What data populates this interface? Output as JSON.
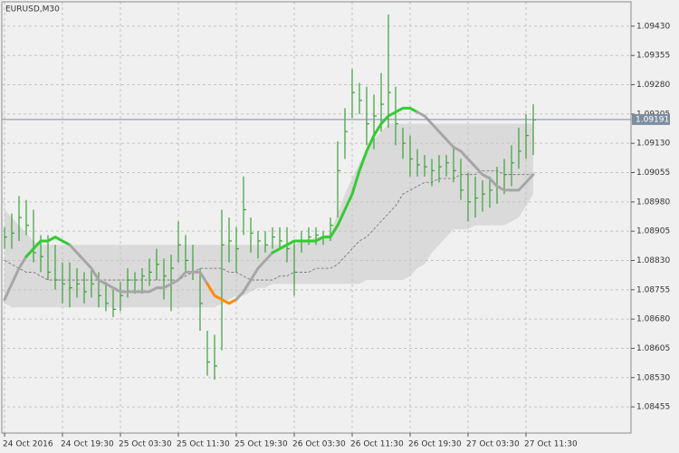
{
  "chart_data": {
    "type": "ohlc",
    "title": "EURUSD,M30",
    "categories": [
      "24 Oct 2016",
      null,
      null,
      null,
      null,
      null,
      null,
      null,
      "24 Oct 19:30",
      null,
      null,
      null,
      null,
      null,
      null,
      null,
      "25 Oct 03:30",
      null,
      null,
      null,
      null,
      null,
      null,
      null,
      "25 Oct 11:30",
      null,
      null,
      null,
      null,
      null,
      null,
      null,
      "25 Oct 19:30",
      null,
      null,
      null,
      null,
      null,
      null,
      null,
      "26 Oct 03:30",
      null,
      null,
      null,
      null,
      null,
      null,
      null,
      "26 Oct 11:30",
      null,
      null,
      null,
      null,
      null,
      null,
      null,
      "26 Oct 19:30",
      null,
      null,
      null,
      null,
      null,
      null,
      null,
      "27 Oct 03:30",
      null,
      null,
      null,
      null,
      null,
      null,
      null,
      "27 Oct 11:30",
      null
    ],
    "high": [
      1.08915,
      1.0895,
      1.08995,
      1.08985,
      1.0896,
      1.08895,
      1.08895,
      1.0887,
      1.08825,
      1.08825,
      1.0881,
      1.088,
      1.0881,
      1.088,
      1.08775,
      1.08755,
      1.08775,
      1.0881,
      1.088,
      1.0881,
      1.08835,
      1.0886,
      1.08835,
      1.08845,
      1.0893,
      1.08895,
      1.0887,
      1.0881,
      1.0865,
      1.0864,
      1.0896,
      1.0894,
      1.08915,
      1.09045,
      1.0894,
      1.08905,
      1.08905,
      1.08915,
      1.08915,
      1.08915,
      1.0888,
      1.08905,
      1.08915,
      1.08915,
      1.08905,
      1.0894,
      1.09135,
      1.0922,
      1.0932,
      1.09285,
      1.09275,
      1.09255,
      1.0931,
      1.0946,
      1.09275,
      1.0917,
      1.0915,
      1.09115,
      1.091,
      1.0909,
      1.091,
      1.091,
      1.09125,
      1.0909,
      1.09055,
      1.09045,
      1.09035,
      1.09045,
      1.0907,
      1.0909,
      1.09125,
      1.0917,
      1.09205,
      1.0923
    ],
    "low": [
      1.0886,
      1.0886,
      1.0888,
      1.08895,
      1.08825,
      1.088,
      1.0878,
      1.08755,
      1.0872,
      1.0871,
      1.08735,
      1.0872,
      1.08735,
      1.0871,
      1.087,
      1.08685,
      1.087,
      1.08735,
      1.08745,
      1.08745,
      1.08765,
      1.0878,
      1.0873,
      1.087,
      1.08825,
      1.088,
      1.0878,
      1.0865,
      1.08535,
      1.08525,
      1.086,
      1.08825,
      1.088,
      1.08895,
      1.0885,
      1.08835,
      1.0885,
      1.0886,
      1.0886,
      1.08825,
      1.0874,
      1.0885,
      1.0887,
      1.0887,
      1.0887,
      1.0888,
      1.0894,
      1.0909,
      1.09195,
      1.09205,
      1.09125,
      1.09115,
      1.0916,
      1.0917,
      1.09125,
      1.0909,
      1.09045,
      1.09045,
      1.09045,
      1.0902,
      1.0903,
      1.09045,
      1.0903,
      1.08985,
      1.0893,
      1.0894,
      1.08955,
      1.08965,
      1.08975,
      1.09,
      1.0902,
      1.09065,
      1.0909,
      1.091
    ],
    "close": [
      1.0889,
      1.089,
      1.0894,
      1.0892,
      1.0885,
      1.0884,
      1.088,
      1.0878,
      1.0877,
      1.0876,
      1.0877,
      1.0875,
      1.0877,
      1.0874,
      1.0872,
      1.08705,
      1.0874,
      1.0878,
      1.0878,
      1.0879,
      1.088,
      1.0882,
      1.0879,
      1.0881,
      1.0887,
      1.0883,
      1.088,
      1.0872,
      1.0857,
      1.0856,
      1.0887,
      1.0888,
      1.0886,
      1.0896,
      1.089,
      1.0888,
      1.0887,
      1.0889,
      1.0888,
      1.0886,
      1.088,
      1.0888,
      1.0889,
      1.08895,
      1.0889,
      1.0892,
      1.0906,
      1.0916,
      1.0926,
      1.0924,
      1.0918,
      1.092,
      1.0923,
      1.0926,
      1.0918,
      1.0913,
      1.0909,
      1.09075,
      1.0907,
      1.0906,
      1.0907,
      1.0908,
      1.0906,
      1.0901,
      1.0898,
      1.0899,
      1.09,
      1.0901,
      1.0902,
      1.0905,
      1.0908,
      1.0911,
      1.0915,
      1.0919
    ],
    "bar_color": "#3aa23a",
    "ylim": [
      1.08388,
      1.09497
    ],
    "yticks": [
      {
        "value": 1.0943,
        "label": "1.09430"
      },
      {
        "value": 1.09355,
        "label": "1.09355"
      },
      {
        "value": 1.0928,
        "label": "1.09280"
      },
      {
        "value": 1.09205,
        "label": "1.09205"
      },
      {
        "value": 1.0913,
        "label": "1.09130"
      },
      {
        "value": 1.09055,
        "label": "1.09055"
      },
      {
        "value": 1.0898,
        "label": "1.08980"
      },
      {
        "value": 1.08905,
        "label": "1.08905"
      },
      {
        "value": 1.0883,
        "label": "1.08830"
      },
      {
        "value": 1.08755,
        "label": "1.08755"
      },
      {
        "value": 1.0868,
        "label": "1.08680"
      },
      {
        "value": 1.08605,
        "label": "1.08605"
      },
      {
        "value": 1.0853,
        "label": "1.08530"
      },
      {
        "value": 1.08455,
        "label": "1.08455"
      }
    ],
    "grid": true,
    "current_price": 1.09191,
    "current_price_color": "#7d8ea0",
    "ma": {
      "values": [
        1.0873,
        1.0877,
        1.0881,
        1.0884,
        1.0886,
        1.0888,
        1.0888,
        1.0889,
        1.0888,
        1.0887,
        1.0885,
        1.0883,
        1.0881,
        1.0878,
        1.0877,
        1.0876,
        1.0875,
        1.0875,
        1.0875,
        1.0875,
        1.0875,
        1.0876,
        1.0876,
        1.0877,
        1.0878,
        1.088,
        1.088,
        1.088,
        1.0877,
        1.0874,
        1.0873,
        1.0872,
        1.0873,
        1.0875,
        1.0878,
        1.0881,
        1.0883,
        1.0885,
        1.0886,
        1.0887,
        1.0888,
        1.0888,
        1.0888,
        1.0888,
        1.0889,
        1.0889,
        1.0892,
        1.0896,
        1.09,
        1.0906,
        1.0911,
        1.0915,
        1.0918,
        1.092,
        1.0921,
        1.0922,
        1.0922,
        1.0921,
        1.092,
        1.0918,
        1.0916,
        1.0914,
        1.0912,
        1.0911,
        1.0909,
        1.0907,
        1.0905,
        1.0904,
        1.0902,
        1.0901,
        1.0901,
        1.0901,
        1.0903,
        1.0905
      ],
      "segments": [
        {
          "color": "#a6a6a6",
          "start": 0,
          "end": 3
        },
        {
          "color": "#32cd32",
          "start": 3,
          "end": 9
        },
        {
          "color": "#a6a6a6",
          "start": 9,
          "end": 28
        },
        {
          "color": "#ff8c00",
          "start": 28,
          "end": 32
        },
        {
          "color": "#a6a6a6",
          "start": 32,
          "end": 37
        },
        {
          "color": "#32cd32",
          "start": 37,
          "end": 57
        },
        {
          "color": "#a6a6a6",
          "start": 57,
          "end": 73
        }
      ]
    },
    "band": {
      "color": "#dadada",
      "upper": [
        1.0896,
        1.0894,
        1.0892,
        1.089,
        1.0888,
        1.0887,
        1.0887,
        1.0887,
        1.0887,
        1.0887,
        1.0887,
        1.0887,
        1.0887,
        1.0887,
        1.0887,
        1.0887,
        1.0887,
        1.0887,
        1.0887,
        1.0887,
        1.0887,
        1.0887,
        1.0887,
        1.0887,
        1.0887,
        1.0887,
        1.0887,
        1.0887,
        1.0887,
        1.0887,
        1.0887,
        1.0887,
        1.0887,
        1.0887,
        1.0887,
        1.0887,
        1.0887,
        1.0887,
        1.0887,
        1.0887,
        1.0887,
        1.0888,
        1.0888,
        1.0889,
        1.0889,
        1.089,
        1.0895,
        1.09,
        1.0904,
        1.0908,
        1.0911,
        1.0914,
        1.0916,
        1.0918,
        1.0918,
        1.0918,
        1.0918,
        1.0918,
        1.0918,
        1.0918,
        1.0918,
        1.0918,
        1.0918,
        1.0918,
        1.0918,
        1.0918,
        1.0918,
        1.0918,
        1.0918,
        1.0918,
        1.0918,
        1.0918,
        1.0918,
        1.0918
      ],
      "lower": [
        1.0872,
        1.0871,
        1.0871,
        1.0871,
        1.0871,
        1.0871,
        1.0871,
        1.0871,
        1.0871,
        1.0871,
        1.0871,
        1.0871,
        1.0871,
        1.0871,
        1.0871,
        1.0871,
        1.0871,
        1.0871,
        1.0871,
        1.0871,
        1.0871,
        1.0871,
        1.0871,
        1.0871,
        1.0871,
        1.0871,
        1.0871,
        1.0871,
        1.0871,
        1.0871,
        1.0872,
        1.0873,
        1.0874,
        1.0874,
        1.0875,
        1.0876,
        1.0876,
        1.0877,
        1.0877,
        1.0877,
        1.0877,
        1.0877,
        1.0877,
        1.0877,
        1.0877,
        1.0877,
        1.0877,
        1.0877,
        1.0877,
        1.0877,
        1.0878,
        1.0878,
        1.0878,
        1.0878,
        1.0878,
        1.0878,
        1.0879,
        1.0881,
        1.0882,
        1.0885,
        1.0887,
        1.0889,
        1.0891,
        1.0891,
        1.0891,
        1.0892,
        1.0892,
        1.0892,
        1.0892,
        1.0892,
        1.0893,
        1.0894,
        1.0897,
        1.09
      ]
    },
    "mid": {
      "color": "#6e6e6e",
      "values": [
        1.0883,
        1.0882,
        1.0881,
        1.088,
        1.088,
        1.0879,
        1.0878,
        1.0878,
        1.0878,
        1.0878,
        1.0878,
        1.0878,
        1.0878,
        1.0878,
        1.0878,
        1.0878,
        1.0878,
        1.0878,
        1.0878,
        1.0878,
        1.0878,
        1.0878,
        1.0878,
        1.0878,
        1.0878,
        1.0879,
        1.088,
        1.0881,
        1.0881,
        1.0881,
        1.0881,
        1.088,
        1.088,
        1.0879,
        1.0878,
        1.0878,
        1.0878,
        1.0878,
        1.0879,
        1.0879,
        1.088,
        1.088,
        1.088,
        1.0881,
        1.0881,
        1.0881,
        1.0882,
        1.0884,
        1.0886,
        1.0888,
        1.0889,
        1.0891,
        1.0893,
        1.0895,
        1.0897,
        1.09,
        1.0901,
        1.0902,
        1.0903,
        1.0903,
        1.0904,
        1.0904,
        1.0904,
        1.0905,
        1.0905,
        1.0905,
        1.0906,
        1.0906,
        1.0906,
        1.0905,
        1.0905,
        1.0905,
        1.0905,
        1.0905
      ]
    }
  }
}
